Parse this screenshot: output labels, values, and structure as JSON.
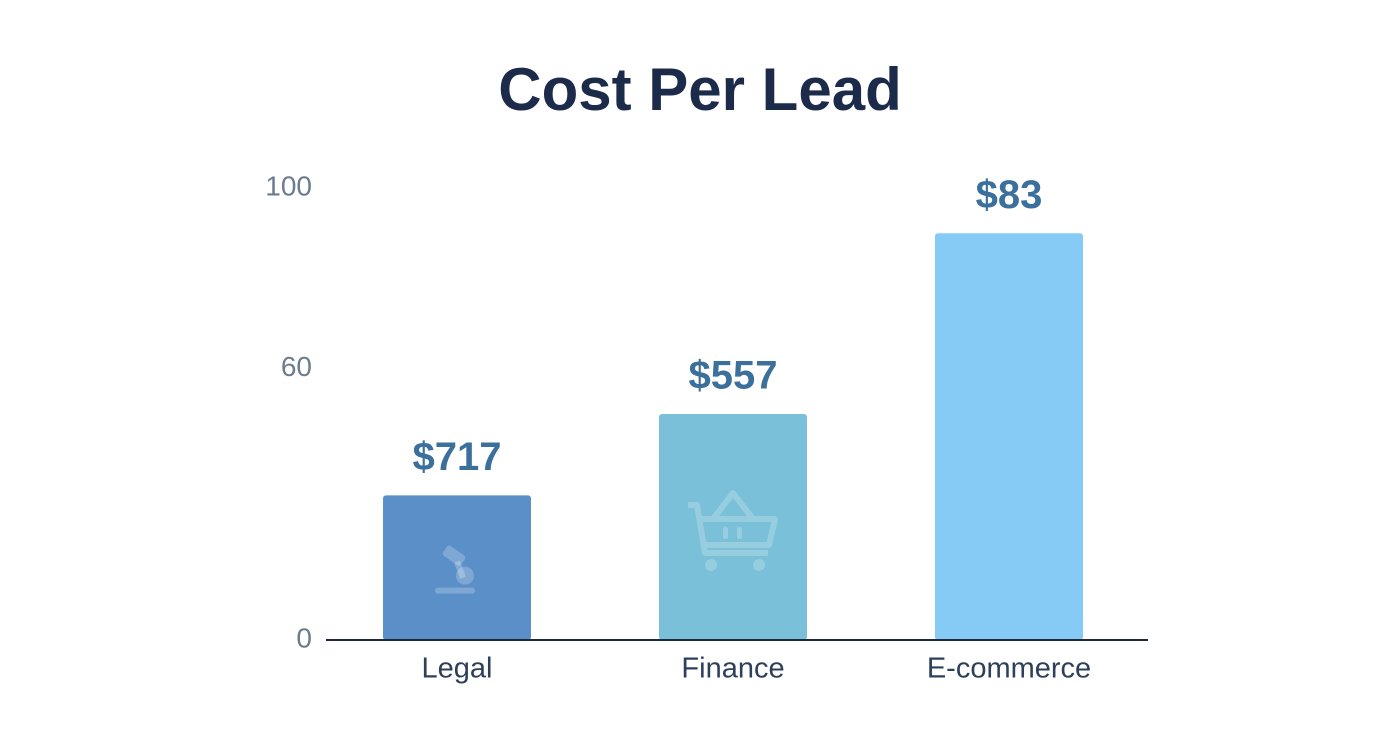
{
  "chart_data": {
    "type": "bar",
    "title": "Cost Per Lead",
    "categories": [
      "Legal",
      "Finance",
      "E-commerce"
    ],
    "values": [
      32,
      50,
      90
    ],
    "annotations": [
      "$717",
      "$557",
      "$83"
    ],
    "colors": [
      "#5b8fc7",
      "#79c0d8",
      "#85cbf5"
    ],
    "ylim": [
      0,
      100
    ],
    "yticks": [
      0,
      60,
      100
    ],
    "grid": false
  }
}
